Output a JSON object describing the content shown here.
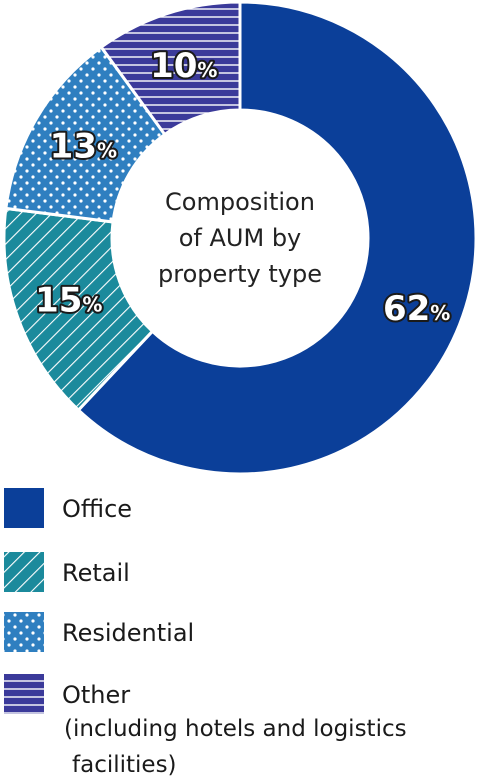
{
  "chart_data": {
    "type": "pie",
    "donut": true,
    "center_label_lines": [
      "Composition",
      "of AUM by",
      "property type"
    ],
    "unit": "%",
    "slices": [
      {
        "name": "Office",
        "value": 62,
        "label": "62",
        "color": "#0b3f99",
        "pattern": "solid"
      },
      {
        "name": "Retail",
        "value": 15,
        "label": "15",
        "color": "#1b8a9c",
        "pattern": "diagonal-stripes"
      },
      {
        "name": "Residential",
        "value": 13,
        "label": "13",
        "color": "#2f7fc0",
        "pattern": "dots"
      },
      {
        "name": "Other",
        "value": 10,
        "label": "10",
        "color": "#3b3a9a",
        "pattern": "horizontal-stripes"
      }
    ],
    "legend": {
      "placement": "bottom-left",
      "items": [
        {
          "label": "Office"
        },
        {
          "label": "Retail"
        },
        {
          "label": "Residential"
        },
        {
          "label": "Other",
          "sublines": [
            "(including hotels and logistics",
            "facilities)"
          ]
        }
      ]
    }
  }
}
